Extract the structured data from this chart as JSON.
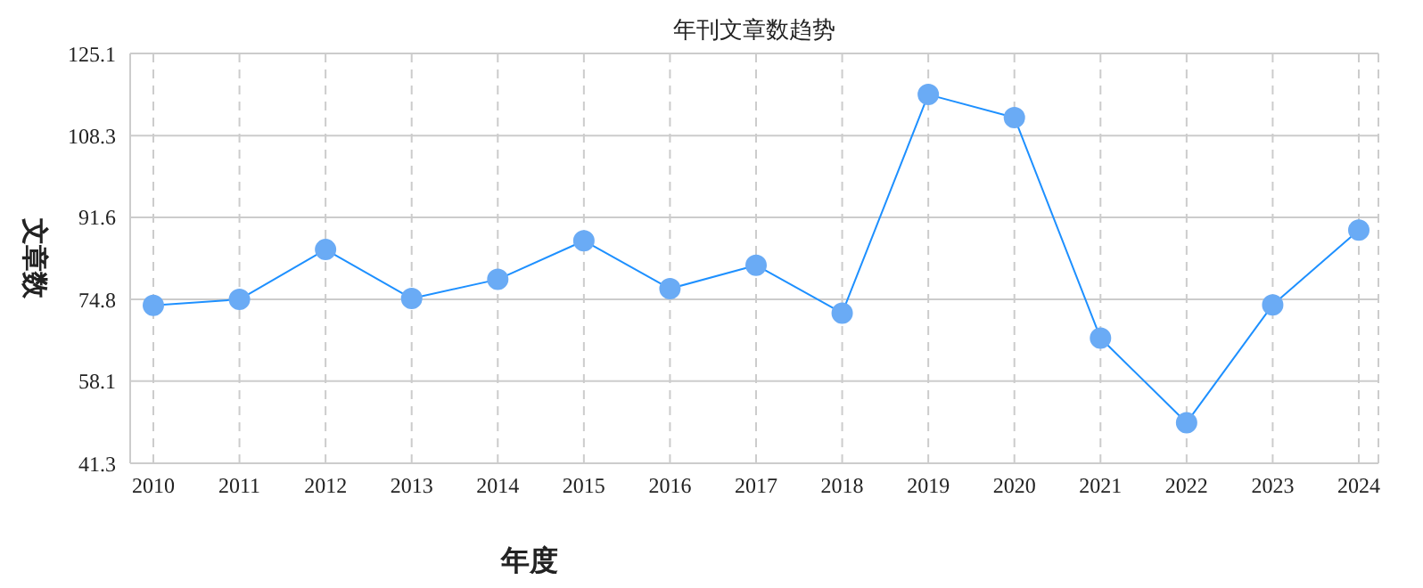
{
  "chart_data": {
    "type": "line",
    "title": "年刊文章数趋势",
    "xlabel": "年度",
    "ylabel": "文章数",
    "categories": [
      "2010",
      "2011",
      "2012",
      "2013",
      "2014",
      "2015",
      "2016",
      "2017",
      "2018",
      "2019",
      "2020",
      "2021",
      "2022",
      "2023",
      "2024"
    ],
    "series": [
      {
        "color": "#1e90ff",
        "values": [
          73.6,
          74.8,
          85.0,
          75.0,
          78.9,
          86.8,
          77.0,
          81.8,
          72.0,
          116.7,
          112.0,
          66.9,
          49.6,
          73.7,
          89.0
        ]
      }
    ],
    "ylim": [
      41.3,
      125.1
    ],
    "yticks": [
      41.3,
      58.1,
      74.8,
      91.6,
      108.3,
      125.1
    ],
    "grid": true,
    "marker": "circle",
    "legend": false
  }
}
